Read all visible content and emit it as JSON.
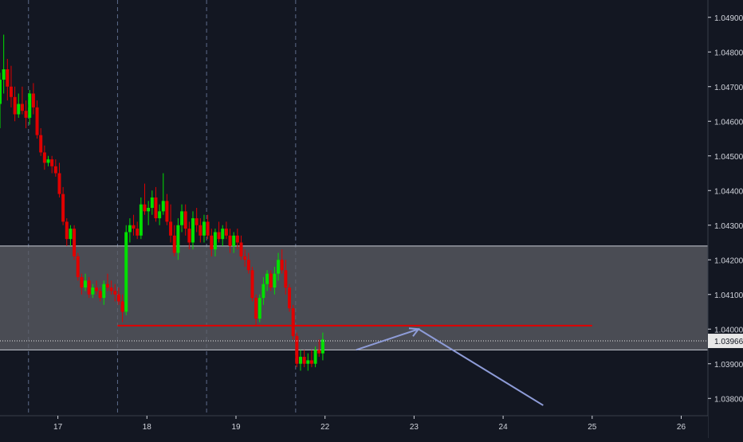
{
  "colors": {
    "background": "#131722",
    "grid": "#5d6b8a",
    "axis_text": "#d1d4dc",
    "zone_fill": "#5d5f66",
    "zone_border": "#c9ccd4",
    "up": "#00e000",
    "down": "#e00000",
    "support": "#e00000",
    "projection": "#8e9cd8",
    "price_label_bg": "#e8e8e8",
    "price_label_text": "#131722"
  },
  "chart_data": {
    "type": "candlestick",
    "x_axis": {
      "tick_labels": [
        "17",
        "18",
        "19",
        "22",
        "23",
        "24",
        "25",
        "26"
      ],
      "tick_positions": [
        17,
        18,
        19,
        20,
        21,
        22,
        23,
        24
      ],
      "session_dividers": [
        16.67,
        17.67,
        18.67,
        19.67
      ],
      "range": [
        16.35,
        24.3
      ]
    },
    "y_axis": {
      "tick_labels": [
        "1.04900",
        "1.04800",
        "1.04700",
        "1.04600",
        "1.04500",
        "1.04400",
        "1.04300",
        "1.04200",
        "1.04100",
        "1.04000",
        "1.03900",
        "1.03800"
      ],
      "tick_values": [
        1.049,
        1.048,
        1.047,
        1.046,
        1.045,
        1.044,
        1.043,
        1.042,
        1.041,
        1.04,
        1.039,
        1.038
      ],
      "range": [
        1.0375,
        1.0495
      ],
      "side": "right"
    },
    "current_price": {
      "value": 1.03966,
      "label": "1.03966"
    },
    "zone": {
      "top": 1.0424,
      "bottom": 1.0394
    },
    "support_line": {
      "value": 1.0401,
      "x_start": 17.67,
      "x_end": 23.0
    },
    "projection": {
      "points": [
        [
          20.35,
          1.0394
        ],
        [
          21.05,
          1.04
        ],
        [
          22.45,
          1.0378
        ]
      ]
    },
    "series": [
      {
        "interval_hours": 1,
        "candles": [
          [
            1.0465,
            1.0474,
            1.0458,
            1.0472
          ],
          [
            1.0472,
            1.0485,
            1.0468,
            1.0475
          ],
          [
            1.0475,
            1.0478,
            1.0466,
            1.047
          ],
          [
            1.047,
            1.0476,
            1.0464,
            1.0467
          ],
          [
            1.0467,
            1.047,
            1.046,
            1.0462
          ],
          [
            1.0462,
            1.0468,
            1.0461,
            1.0465
          ],
          [
            1.0465,
            1.047,
            1.0462,
            1.0463
          ],
          [
            1.0463,
            1.0466,
            1.0458,
            1.0461
          ],
          [
            1.0461,
            1.0469,
            1.0459,
            1.0468
          ],
          [
            1.0468,
            1.0471,
            1.0462,
            1.0464
          ],
          [
            1.0464,
            1.0466,
            1.0455,
            1.0456
          ],
          [
            1.0456,
            1.0458,
            1.045,
            1.0451
          ],
          [
            1.0451,
            1.0453,
            1.0446,
            1.0448
          ],
          [
            1.0448,
            1.045,
            1.0447,
            1.0449
          ],
          [
            1.0449,
            1.045,
            1.0445,
            1.0447
          ],
          [
            1.0447,
            1.0449,
            1.0444,
            1.0445
          ],
          [
            1.0445,
            1.0448,
            1.0438,
            1.0439
          ],
          [
            1.0439,
            1.0441,
            1.043,
            1.0431
          ],
          [
            1.0431,
            1.0432,
            1.0424,
            1.0426
          ],
          [
            1.0426,
            1.043,
            1.0424,
            1.0429
          ],
          [
            1.0429,
            1.043,
            1.042,
            1.0421
          ],
          [
            1.0421,
            1.0422,
            1.0414,
            1.0415
          ],
          [
            1.0415,
            1.0416,
            1.041,
            1.0412
          ],
          [
            1.0412,
            1.0416,
            1.0411,
            1.0414
          ],
          [
            1.0414,
            1.0415,
            1.0409,
            1.041
          ],
          [
            1.041,
            1.0413,
            1.0409,
            1.0412
          ],
          [
            1.0412,
            1.0414,
            1.041,
            1.0411
          ],
          [
            1.0411,
            1.0412,
            1.0408,
            1.0409
          ],
          [
            1.0409,
            1.0414,
            1.0407,
            1.0413
          ],
          [
            1.0413,
            1.0416,
            1.0411,
            1.0412
          ],
          [
            1.0412,
            1.0414,
            1.041,
            1.0411
          ],
          [
            1.0411,
            1.0413,
            1.0408,
            1.041
          ],
          [
            1.041,
            1.0412,
            1.0407,
            1.0408
          ],
          [
            1.0408,
            1.041,
            1.0402,
            1.0405
          ],
          [
            1.0405,
            1.043,
            1.0404,
            1.0428
          ],
          [
            1.0428,
            1.0432,
            1.0425,
            1.043
          ],
          [
            1.043,
            1.0433,
            1.0427,
            1.0429
          ],
          [
            1.0429,
            1.0431,
            1.0426,
            1.0427
          ],
          [
            1.0427,
            1.0438,
            1.0426,
            1.0436
          ],
          [
            1.0436,
            1.0442,
            1.0433,
            1.0434
          ],
          [
            1.0434,
            1.0437,
            1.043,
            1.0435
          ],
          [
            1.0435,
            1.044,
            1.0433,
            1.0438
          ],
          [
            1.0438,
            1.0441,
            1.0431,
            1.0432
          ],
          [
            1.0432,
            1.0436,
            1.043,
            1.0434
          ],
          [
            1.0434,
            1.0445,
            1.0433,
            1.0437
          ],
          [
            1.0437,
            1.0439,
            1.043,
            1.0431
          ],
          [
            1.0431,
            1.0436,
            1.0425,
            1.0427
          ],
          [
            1.0427,
            1.043,
            1.0421,
            1.0422
          ],
          [
            1.0422,
            1.0432,
            1.042,
            1.043
          ],
          [
            1.043,
            1.0436,
            1.0428,
            1.0434
          ],
          [
            1.0434,
            1.0436,
            1.0427,
            1.0429
          ],
          [
            1.0429,
            1.0431,
            1.0423,
            1.0425
          ],
          [
            1.0425,
            1.0434,
            1.0423,
            1.0432
          ],
          [
            1.0432,
            1.0435,
            1.0428,
            1.043
          ],
          [
            1.043,
            1.0432,
            1.0425,
            1.0427
          ],
          [
            1.0427,
            1.0433,
            1.0425,
            1.0431
          ],
          [
            1.0431,
            1.0433,
            1.0426,
            1.0427
          ],
          [
            1.0427,
            1.0429,
            1.0421,
            1.0423
          ],
          [
            1.0423,
            1.0429,
            1.0421,
            1.0428
          ],
          [
            1.0428,
            1.0431,
            1.0425,
            1.0426
          ],
          [
            1.0426,
            1.043,
            1.0424,
            1.0429
          ],
          [
            1.0429,
            1.0431,
            1.0426,
            1.0427
          ],
          [
            1.0427,
            1.0429,
            1.0422,
            1.0424
          ],
          [
            1.0424,
            1.0428,
            1.0422,
            1.0427
          ],
          [
            1.0427,
            1.0429,
            1.0423,
            1.0425
          ],
          [
            1.0425,
            1.0427,
            1.042,
            1.0421
          ],
          [
            1.0421,
            1.0423,
            1.0418,
            1.042
          ],
          [
            1.042,
            1.0422,
            1.0416,
            1.0417
          ],
          [
            1.0417,
            1.0418,
            1.0408,
            1.0409
          ],
          [
            1.0409,
            1.041,
            1.0401,
            1.0403
          ],
          [
            1.0403,
            1.041,
            1.0402,
            1.0409
          ],
          [
            1.0409,
            1.0415,
            1.0407,
            1.0413
          ],
          [
            1.0413,
            1.0417,
            1.0411,
            1.0416
          ],
          [
            1.0416,
            1.0417,
            1.0411,
            1.0412
          ],
          [
            1.0412,
            1.0418,
            1.041,
            1.0416
          ],
          [
            1.0416,
            1.0422,
            1.0414,
            1.042
          ],
          [
            1.042,
            1.0423,
            1.0416,
            1.0417
          ],
          [
            1.0417,
            1.042,
            1.041,
            1.0412
          ],
          [
            1.0412,
            1.0413,
            1.0405,
            1.0406
          ],
          [
            1.0406,
            1.0407,
            1.0397,
            1.0398
          ],
          [
            1.0398,
            1.0399,
            1.0389,
            1.039
          ],
          [
            1.039,
            1.0394,
            1.0388,
            1.0392
          ],
          [
            1.0392,
            1.0394,
            1.0389,
            1.039
          ],
          [
            1.039,
            1.0393,
            1.0388,
            1.0391
          ],
          [
            1.0391,
            1.0394,
            1.0389,
            1.039
          ],
          [
            1.039,
            1.0395,
            1.0389,
            1.0394
          ],
          [
            1.0394,
            1.0397,
            1.0392,
            1.0393
          ],
          [
            1.0393,
            1.0399,
            1.0391,
            1.0397
          ]
        ]
      }
    ]
  }
}
